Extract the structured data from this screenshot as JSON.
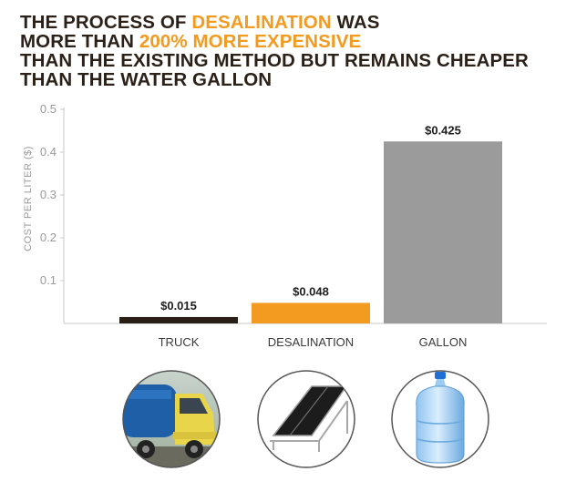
{
  "title": {
    "line1_pre": "THE PROCESS OF ",
    "line1_hl": "DESALINATION",
    "line1_post": " WAS",
    "line2_pre": "MORE THAN ",
    "line2_hl": "200% MORE EXPENSIVE",
    "line3": "THAN THE EXISTING METHOD BUT REMAINS CHEAPER",
    "line4": "THAN THE WATER GALLON"
  },
  "colors": {
    "text": "#2b2118",
    "highlight": "#f39a21",
    "truck": "#2a1f17",
    "desalination": "#f39a21",
    "gallon": "#9b9b9b"
  },
  "chart_data": {
    "type": "bar",
    "ylabel": "COST PER LITER ($)",
    "ylim": [
      0,
      0.5
    ],
    "yticks": [
      0.1,
      0.2,
      0.3,
      0.4,
      0.5
    ],
    "ytick_labels": [
      "0.1",
      "0.2",
      "0.3",
      "0.4",
      "0.5"
    ],
    "categories": [
      "TRUCK",
      "DESALINATION",
      "GALLON"
    ],
    "values": [
      0.015,
      0.048,
      0.425
    ],
    "data_labels": [
      "$0.015",
      "$0.048",
      "$0.425"
    ],
    "colors": [
      "#2a1f17",
      "#f39a21",
      "#9b9b9b"
    ],
    "grid": false,
    "legend": "none"
  },
  "images": [
    {
      "category": "TRUCK",
      "icon": "water-truck-photo"
    },
    {
      "category": "DESALINATION",
      "icon": "solar-panel-photo"
    },
    {
      "category": "GALLON",
      "icon": "water-gallon-photo"
    }
  ]
}
